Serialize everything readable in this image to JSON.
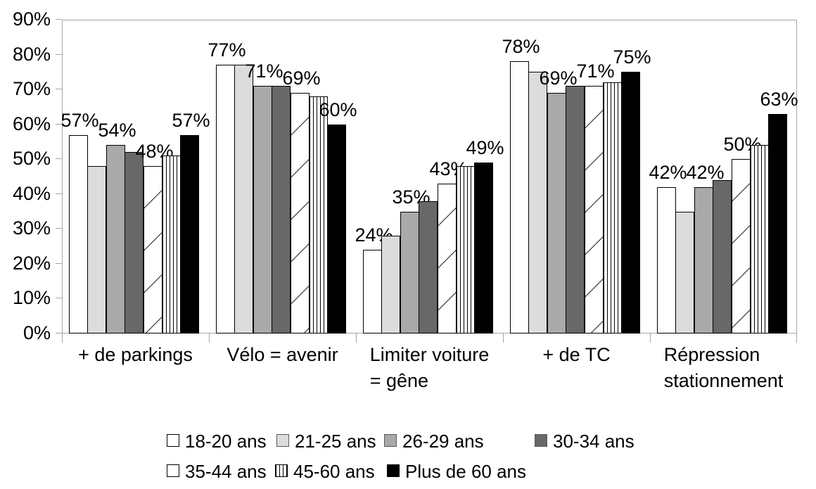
{
  "chart_data": {
    "type": "bar",
    "title": "",
    "xlabel": "",
    "ylabel": "",
    "categories": [
      "+ de parkings",
      "Vélo = avenir",
      "Limiter voiture = gêne",
      "+ de TC",
      "Répression stationnement"
    ],
    "category_label_lines": [
      [
        "+ de parkings"
      ],
      [
        "Vélo = avenir"
      ],
      [
        "Limiter voiture",
        "= gêne"
      ],
      [
        "+ de TC"
      ],
      [
        "Répression",
        "stationnement"
      ]
    ],
    "series": [
      {
        "name": "18-20 ans",
        "pattern": "white",
        "values": [
          57,
          77,
          24,
          78,
          42
        ]
      },
      {
        "name": "21-25 ans",
        "pattern": "light",
        "values": [
          48,
          77,
          28,
          75,
          35
        ]
      },
      {
        "name": "26-29 ans",
        "pattern": "mid",
        "values": [
          54,
          71,
          35,
          69,
          42
        ]
      },
      {
        "name": "30-34 ans",
        "pattern": "dark",
        "values": [
          52,
          71,
          38,
          71,
          44
        ]
      },
      {
        "name": "35-44 ans",
        "pattern": "diag",
        "values": [
          48,
          69,
          43,
          71,
          50
        ]
      },
      {
        "name": "45-60 ans",
        "pattern": "vstripe",
        "values": [
          51,
          68,
          48,
          72,
          54
        ]
      },
      {
        "name": "Plus de 60 ans",
        "pattern": "black",
        "values": [
          57,
          60,
          49,
          75,
          63
        ]
      }
    ],
    "data_labels": {
      "shown_series_indices": [
        0,
        2,
        4,
        6
      ],
      "suffix": "%"
    },
    "y_axis": {
      "min": 0,
      "max": 90,
      "step": 10,
      "tick_labels": [
        "0%",
        "10%",
        "20%",
        "30%",
        "40%",
        "50%",
        "60%",
        "70%",
        "80%",
        "90%"
      ]
    },
    "legend": {
      "position": "bottom",
      "rows": [
        [
          0,
          1,
          2,
          3
        ],
        [
          4,
          5,
          6
        ]
      ]
    },
    "grid": "plot-frame-only",
    "colors": {
      "bar_outline": "#000000",
      "fill_white": "#ffffff",
      "fill_light_gray": "#dcdcdc",
      "fill_mid_gray": "#a9a9a9",
      "fill_dark_gray": "#686868",
      "fill_black": "#000000",
      "hatch_line": "#555555",
      "axis": "#a6a6a6",
      "text": "#000000"
    }
  }
}
